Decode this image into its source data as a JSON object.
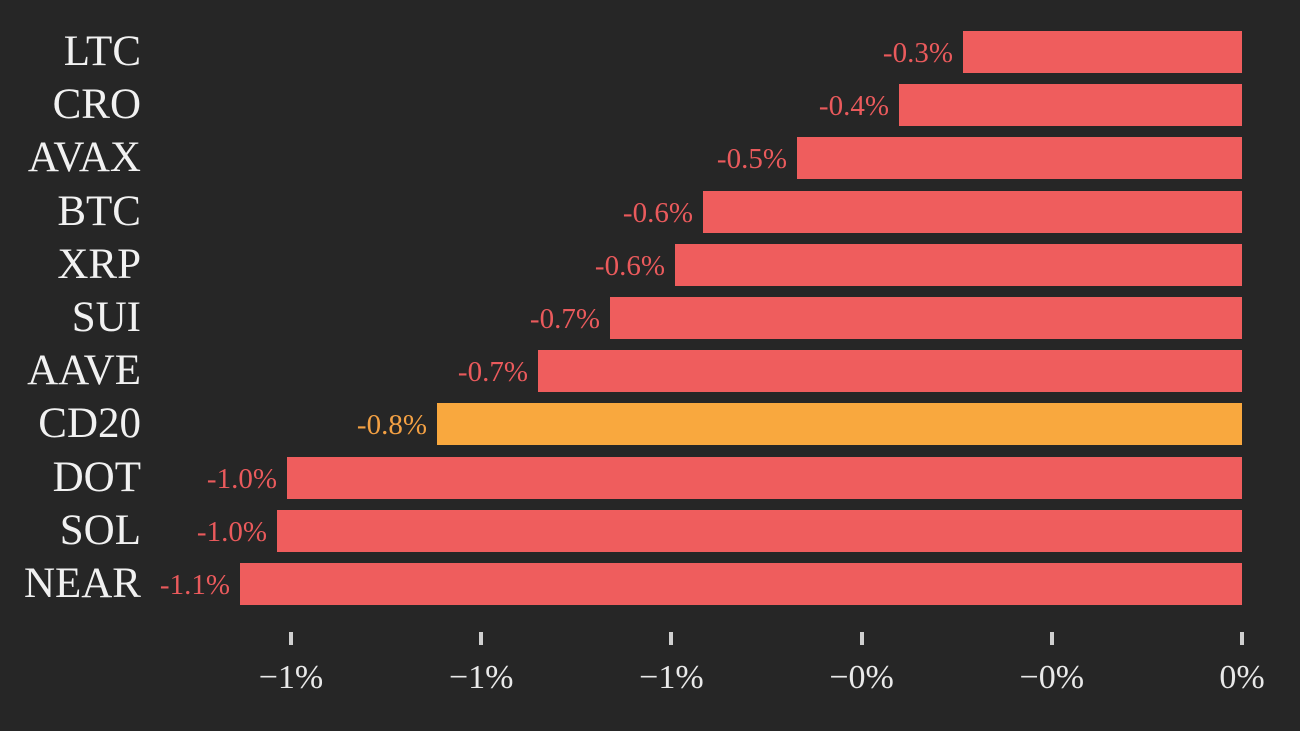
{
  "chart_data": {
    "type": "bar",
    "orientation": "horizontal",
    "title": "",
    "xlabel": "",
    "ylabel": "",
    "grid": false,
    "legend": null,
    "xlim": [
      -1.135,
      0
    ],
    "categories": [
      "LTC",
      "CRO",
      "AVAX",
      "BTC",
      "XRP",
      "SUI",
      "AAVE",
      "CD20",
      "DOT",
      "SOL",
      "NEAR"
    ],
    "values": [
      -0.293,
      -0.361,
      -0.468,
      -0.567,
      -0.596,
      -0.665,
      -0.74,
      -0.846,
      -1.004,
      -1.015,
      -1.054
    ],
    "bar_labels": [
      "-0.3%",
      "-0.4%",
      "-0.5%",
      "-0.6%",
      "-0.6%",
      "-0.7%",
      "-0.7%",
      "-0.8%",
      "-1.0%",
      "-1.0%",
      "-1.1%"
    ],
    "highlight_index": 7,
    "highlight_category": "CD20",
    "x_ticks": [
      {
        "value": -1.0,
        "label": "−1%"
      },
      {
        "value": -0.8,
        "label": "−1%"
      },
      {
        "value": -0.6,
        "label": "−1%"
      },
      {
        "value": -0.4,
        "label": "−0%"
      },
      {
        "value": -0.2,
        "label": "−0%"
      },
      {
        "value": 0.0,
        "label": "0%"
      }
    ]
  },
  "colors": {
    "background": "#262626",
    "bar_default": "#ef5d5d",
    "bar_highlight": "#f9a83e",
    "value_label_default": "#ea5a5c",
    "value_label_highlight": "#f3a043",
    "category_label": "#f1f1f1",
    "tick_label": "#e9e9e9",
    "tick_mark": "#cfcfcf"
  }
}
